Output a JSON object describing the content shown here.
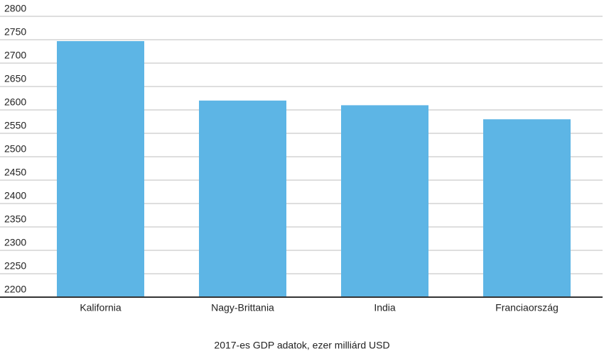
{
  "chart_data": {
    "type": "bar",
    "caption": "2017-es GDP adatok, ezer milliárd USD",
    "categories": [
      "Kalifornia",
      "Nagy-Brittania",
      "India",
      "Franciaország"
    ],
    "values": [
      2747,
      2620,
      2610,
      2580
    ],
    "color": "#5db5e5",
    "ylim": [
      2200,
      2800
    ],
    "yticks": [
      2200,
      2250,
      2300,
      2350,
      2400,
      2450,
      2500,
      2550,
      2600,
      2650,
      2700,
      2750,
      2800
    ],
    "grid": true
  }
}
